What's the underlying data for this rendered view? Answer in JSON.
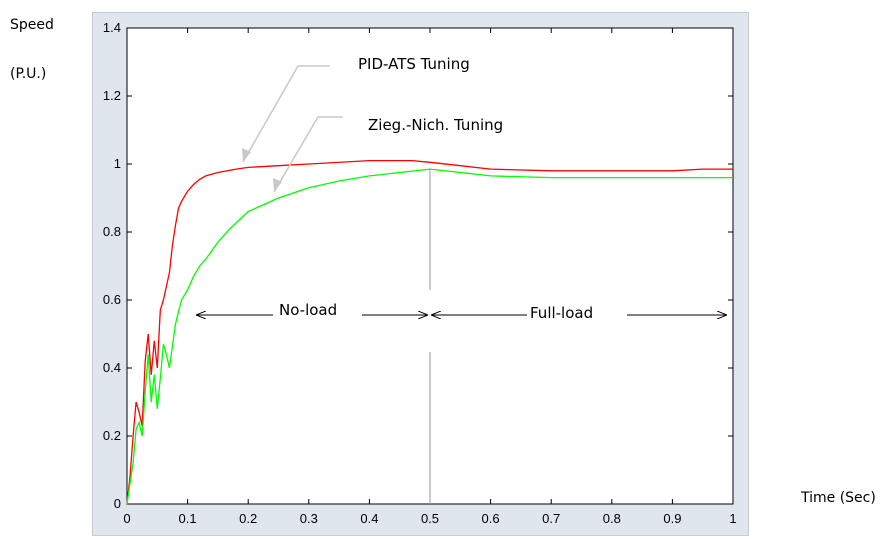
{
  "chart_data": {
    "type": "line",
    "ylabel_line1": "Speed",
    "ylabel_line2": "(P.U.)",
    "xlabel": "Time (Sec)",
    "xlim": [
      0,
      1
    ],
    "ylim": [
      0,
      1.4
    ],
    "x_ticks": [
      0,
      0.1,
      0.2,
      0.3,
      0.4,
      0.5,
      0.6,
      0.7,
      0.8,
      0.9,
      1
    ],
    "x_tick_labels": [
      "0",
      "0.1",
      "0.2",
      "0.3",
      "0.4",
      "0.5",
      "0.6",
      "0.7",
      "0.8",
      "0.9",
      "1"
    ],
    "y_ticks": [
      0,
      0.2,
      0.4,
      0.6,
      0.8,
      1,
      1.2,
      1.4
    ],
    "y_tick_labels": [
      "0",
      "0.2",
      "0.4",
      "0.6",
      "0.8",
      "1",
      "1.2",
      "1.4"
    ],
    "grid": false,
    "series": [
      {
        "name": "PID-ATS  Tuning",
        "color": "#ff0000",
        "x": [
          0,
          0.005,
          0.01,
          0.015,
          0.02,
          0.025,
          0.03,
          0.035,
          0.04,
          0.045,
          0.05,
          0.055,
          0.06,
          0.065,
          0.07,
          0.075,
          0.08,
          0.085,
          0.09,
          0.1,
          0.11,
          0.12,
          0.13,
          0.15,
          0.18,
          0.2,
          0.25,
          0.3,
          0.4,
          0.47,
          0.5,
          0.55,
          0.6,
          0.7,
          0.8,
          0.9,
          0.95,
          1.0
        ],
        "y": [
          0,
          0.08,
          0.2,
          0.3,
          0.27,
          0.23,
          0.42,
          0.5,
          0.38,
          0.48,
          0.4,
          0.57,
          0.6,
          0.64,
          0.68,
          0.76,
          0.82,
          0.87,
          0.89,
          0.92,
          0.94,
          0.955,
          0.965,
          0.975,
          0.985,
          0.99,
          0.995,
          1.0,
          1.01,
          1.01,
          1.005,
          0.995,
          0.985,
          0.98,
          0.98,
          0.98,
          0.985,
          0.985
        ]
      },
      {
        "name": "Zieg.-Nich. Tuning",
        "color": "#00ff00",
        "x": [
          0,
          0.005,
          0.01,
          0.015,
          0.02,
          0.025,
          0.03,
          0.035,
          0.04,
          0.045,
          0.05,
          0.055,
          0.06,
          0.065,
          0.07,
          0.08,
          0.09,
          0.1,
          0.11,
          0.12,
          0.13,
          0.15,
          0.17,
          0.2,
          0.25,
          0.3,
          0.35,
          0.4,
          0.45,
          0.5,
          0.55,
          0.6,
          0.7,
          0.8,
          0.9,
          1.0
        ],
        "y": [
          0,
          0.06,
          0.12,
          0.22,
          0.24,
          0.2,
          0.33,
          0.44,
          0.3,
          0.38,
          0.28,
          0.37,
          0.47,
          0.44,
          0.4,
          0.53,
          0.6,
          0.63,
          0.67,
          0.7,
          0.72,
          0.77,
          0.81,
          0.86,
          0.9,
          0.93,
          0.95,
          0.965,
          0.975,
          0.985,
          0.975,
          0.965,
          0.96,
          0.96,
          0.96,
          0.96
        ]
      }
    ],
    "annotations": {
      "pid_label": "PID-ATS  Tuning",
      "zn_label": "Zieg.-Nich. Tuning",
      "no_load": "No-load",
      "full_load": "Full-load"
    },
    "divider_x": 0.5
  }
}
